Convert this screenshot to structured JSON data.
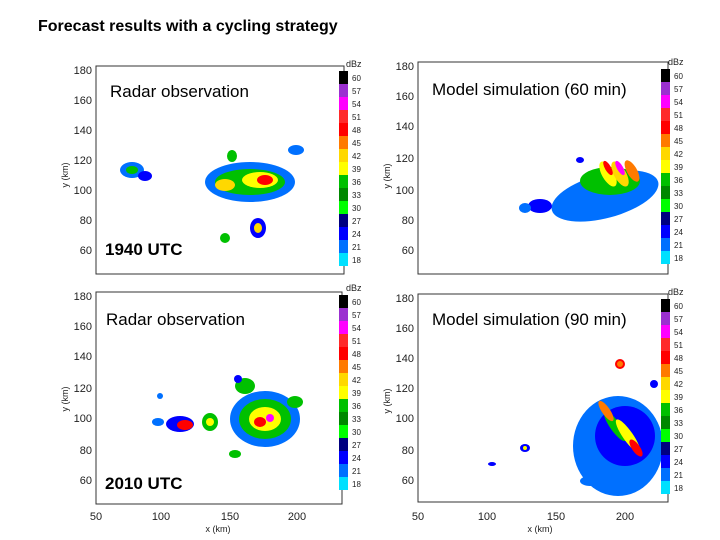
{
  "title": "Forecast results with a cycling strategy",
  "colorbar": {
    "unit": "dBz",
    "levels": [
      "60",
      "57",
      "54",
      "51",
      "48",
      "45",
      "42",
      "39",
      "36",
      "33",
      "30",
      "27",
      "24",
      "21",
      "18"
    ],
    "colors": [
      "#000000",
      "#9b30d0",
      "#ff00ff",
      "#ff2a2a",
      "#ff0000",
      "#ff7a00",
      "#ffd800",
      "#ffff00",
      "#00c000",
      "#008800",
      "#00ff00",
      "#000080",
      "#0000ff",
      "#0070ff",
      "#00e0ff"
    ]
  },
  "panels": [
    {
      "id": "tl",
      "label": "Radar observation",
      "time_label": "1940 UTC",
      "y_ticks": [
        "180",
        "160",
        "140",
        "120",
        "100",
        "80",
        "60"
      ],
      "y_label": "y (km)",
      "x_ticks": [],
      "x_label": ""
    },
    {
      "id": "tr",
      "label": "Model simulation (60 min)",
      "time_label": "",
      "y_ticks": [
        "180",
        "160",
        "140",
        "120",
        "100",
        "80",
        "60"
      ],
      "y_label": "y (km)",
      "x_ticks": [],
      "x_label": ""
    },
    {
      "id": "bl",
      "label": "Radar observation",
      "time_label": "2010 UTC",
      "y_ticks": [
        "180",
        "160",
        "140",
        "120",
        "100",
        "80",
        "60"
      ],
      "y_label": "y (km)",
      "x_ticks": [
        "50",
        "100",
        "150",
        "200"
      ],
      "x_label": "x (km)"
    },
    {
      "id": "br",
      "label": "Model simulation (90 min)",
      "time_label": "",
      "y_ticks": [
        "180",
        "160",
        "140",
        "120",
        "100",
        "80",
        "60"
      ],
      "y_label": "y (km)",
      "x_ticks": [
        "50",
        "100",
        "150",
        "200"
      ],
      "x_label": "x (km)"
    }
  ]
}
